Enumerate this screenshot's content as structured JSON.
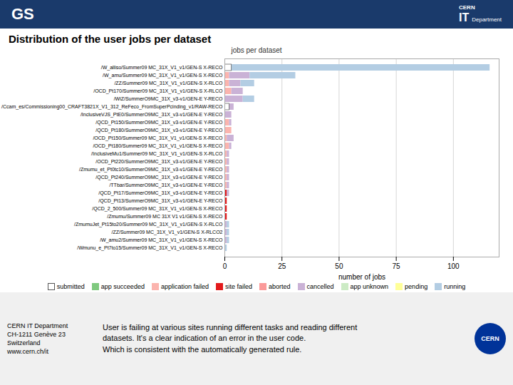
{
  "chart_data": {
    "type": "bar",
    "orientation": "horizontal",
    "stacked": true,
    "title": "Distribution of the user jobs per dataset",
    "subtitle": "jobs per dataset",
    "xlabel": "number of jobs",
    "categories": [
      "/W_alliso/Summer09 MC_31X_V1_v1/GEN-S X-RECO",
      "/W_amu/Summer09 MC_31X_V1_v1/GEN-S X-RECO",
      "/ZZ/Summer09 MC_31X_V1_v1/GEN-S X-RLCO",
      "/OCD_Pt170/Summer09 MC_31X_V1_v1/GEN-S X-RLCO",
      "/WiZ/SummerO9MC_31X_v3-v1/GEN-E Y-RECO",
      "/Ccam_es/Commissioning00_CRAFT3821X_V1_312_ReFeco_FromSuperPcinding_v1/RAW-RECO",
      "/InclusiveVJS_PtE0/SummerO9MC_31X_v3-v1/GEN-E Y-RECO",
      "/QCD_Pt150/SummerO9MC_31X_v3-v1/GEN-E Y-RECO",
      "/QCD_Pt180/SummerO9MC_31X_v3-v1/GEN-E Y-RECO",
      "/OCD_Pt150/Summer09 MC_31X_V1_v1/GEN-S X-RECO",
      "/OCD_Pt180/Summer09 MC_31X_V1_v1/GEN-S X-RECO",
      "/InclusiveMu1/Summer09 MC_31X_V1_v1/GEN-S X-RLCO",
      "/OCD_Pt220/SummerO9MC_31X_v3-v1/GEN-E Y-RECO",
      "/Zmumu_et_Pt0tc10/SummerO9MC_31X_v3-v1/GEN-E Y-RECO",
      "/QCD_Pt240/SummerO9MC_31X_v3-v1/GEN-E Y-RECO",
      "/TTbar/SummerO9MC_31X_v3-v1/GEN-E Y-RECO",
      "/QCD_Pt17/SummerO9MC_31X_v3-v1/GEN-E Y-RECO",
      "/QCD_Pt13/SummerO9MC_31X_v3-v1/GEN-E Y-RECO",
      "/QCD_2_500/Summer09 MC_31X_V1_v1/GEN-S X-RECO",
      "/Zmumu/Summer09 MC 31X V1 v1/GEN-S X-RECO",
      "/ZmumuJet_Pt15to20/Summer09 MC_31X_V1_v1/GEN-S X-RLCO",
      "/ZZ/Summer09 MC_31X_V1_v1/GEN-S X-RLCO2",
      "/W_amu2/Summer09 MC_31X_V1_v1/GEN-S X-RECO",
      "/Wmunu_e_Pt7to15/Summer09 MC_31X_V1_v1/GEN-S X-RECO"
    ],
    "series": [
      {
        "name": "submitted",
        "color": "#ffffff",
        "values": [
          3,
          0,
          0,
          0,
          0,
          2,
          0,
          0,
          0,
          0,
          0,
          0,
          0,
          0,
          0,
          0,
          0,
          0,
          0,
          0,
          0,
          0,
          0,
          0
        ]
      },
      {
        "name": "app succeeded",
        "color": "#7fc97f",
        "values": [
          0,
          0,
          0,
          0,
          0,
          0,
          0,
          0,
          0,
          0,
          0,
          0,
          0,
          0,
          0,
          0,
          0,
          0,
          0,
          0,
          0,
          0,
          0,
          0
        ]
      },
      {
        "name": "application failed",
        "color": "#fbb4ae",
        "values": [
          0,
          2,
          2,
          3,
          0,
          0,
          0,
          2,
          3,
          1,
          2,
          1,
          1,
          1,
          1,
          1,
          0,
          0,
          0,
          0,
          0,
          0,
          0,
          0
        ]
      },
      {
        "name": "site failed",
        "color": "#e31a1c",
        "values": [
          0,
          0,
          0,
          0,
          0,
          0,
          0,
          0,
          0,
          0,
          0,
          0,
          0,
          0,
          0,
          0,
          1,
          1,
          1,
          1,
          0,
          0,
          0,
          0
        ]
      },
      {
        "name": "aborted",
        "color": "#fb9a99",
        "values": [
          0,
          0,
          0,
          0,
          0,
          0,
          0,
          0,
          0,
          0,
          0,
          0,
          0,
          0,
          0,
          0,
          0,
          0,
          0,
          0,
          0,
          0,
          0,
          0
        ]
      },
      {
        "name": "cancelled",
        "color": "#cab2d6",
        "values": [
          0,
          9,
          5,
          5,
          8,
          2,
          3,
          1,
          0,
          3,
          1,
          1,
          1,
          1,
          1,
          1,
          1,
          0,
          0,
          0,
          1,
          1,
          1,
          0
        ]
      },
      {
        "name": "app unknown",
        "color": "#ccebc5",
        "values": [
          0,
          0,
          0,
          0,
          0,
          0,
          0,
          0,
          0,
          0,
          0,
          0,
          0,
          0,
          0,
          0,
          0,
          0,
          0,
          0,
          0,
          0,
          0,
          0
        ]
      },
      {
        "name": "pending",
        "color": "#ffff99",
        "values": [
          0,
          0,
          0,
          0,
          0,
          0,
          0,
          0,
          0,
          0,
          0,
          0,
          0,
          0,
          0,
          0,
          0,
          0,
          0,
          0,
          0,
          0,
          0,
          0
        ]
      },
      {
        "name": "running",
        "color": "#b3cde3",
        "values": [
          113,
          20,
          6,
          0,
          5,
          0,
          0,
          0,
          0,
          0,
          0,
          0,
          0,
          0,
          0,
          0,
          0,
          0,
          0,
          0,
          1,
          1,
          1,
          1
        ]
      }
    ],
    "xlim": [
      0,
      120
    ],
    "xticks": [
      0,
      25,
      50,
      75,
      100
    ],
    "grid": true,
    "legend": "bottom",
    "annotations": [
      "GS",
      "CERN",
      "IT",
      "Department",
      "CERN IT Department",
      "CH-1211 Genève 23",
      "Switzerland",
      "www.cern.ch/it",
      "User is failing at various sites running different tasks and reading different",
      "datasets. It's a clear indication of an error in the user code.",
      "Which is consistent with the automatically generated rule.",
      "CERN"
    ]
  }
}
